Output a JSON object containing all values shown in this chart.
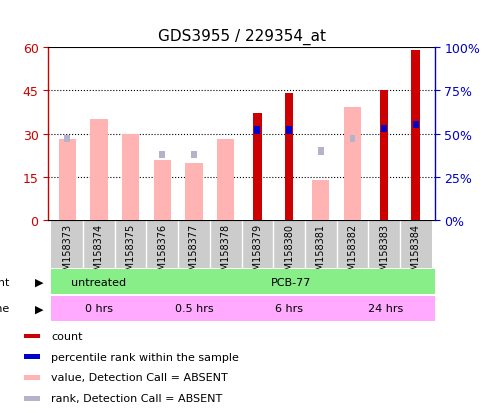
{
  "title": "GDS3955 / 229354_at",
  "samples": [
    "GSM158373",
    "GSM158374",
    "GSM158375",
    "GSM158376",
    "GSM158377",
    "GSM158378",
    "GSM158379",
    "GSM158380",
    "GSM158381",
    "GSM158382",
    "GSM158383",
    "GSM158384"
  ],
  "count_values": [
    0,
    0,
    0,
    0,
    0,
    0,
    37,
    44,
    0,
    0,
    45,
    59
  ],
  "rank_pct_values": [
    0,
    0,
    0,
    0,
    0,
    0,
    52,
    52,
    0,
    0,
    53,
    55
  ],
  "absent_value_values": [
    28,
    35,
    30,
    21,
    20,
    28,
    0,
    0,
    14,
    39,
    0,
    0
  ],
  "absent_rank_pct_values": [
    47,
    0,
    0,
    38,
    38,
    0,
    0,
    0,
    40,
    47,
    0,
    0
  ],
  "ylim_left": [
    0,
    60
  ],
  "yticks_left": [
    0,
    15,
    30,
    45,
    60
  ],
  "ytick_labels_left": [
    "0",
    "15",
    "30",
    "45",
    "60"
  ],
  "ytick_labels_right": [
    "0%",
    "25%",
    "50%",
    "75%",
    "100%"
  ],
  "left_color": "#cc0000",
  "right_color": "#0000cc",
  "absent_value_color": "#ffb3b3",
  "absent_rank_color": "#b3b3cc",
  "count_color": "#cc0000",
  "rank_color": "#0000cc",
  "agent_untreated_color": "#88ee88",
  "agent_pcb_color": "#88ee88",
  "time_color": "#ffaaff",
  "legend_items": [
    {
      "label": "count",
      "color": "#cc0000"
    },
    {
      "label": "percentile rank within the sample",
      "color": "#0000cc"
    },
    {
      "label": "value, Detection Call = ABSENT",
      "color": "#ffb3b3"
    },
    {
      "label": "rank, Detection Call = ABSENT",
      "color": "#b3b3cc"
    }
  ]
}
